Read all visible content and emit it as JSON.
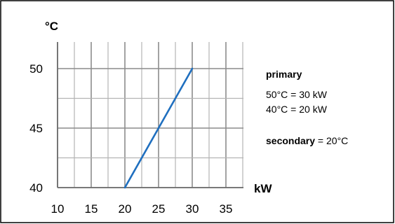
{
  "chart_data": {
    "type": "line",
    "title": "",
    "xlabel": "kW",
    "ylabel": "°C",
    "xlim": [
      10,
      35
    ],
    "ylim": [
      40,
      50
    ],
    "x_ticks": [
      10,
      15,
      20,
      25,
      30,
      35
    ],
    "y_ticks": [
      40,
      45,
      50
    ],
    "x_ticks_label": [
      "10",
      "15",
      "20",
      "25",
      "30",
      "35"
    ],
    "y_ticks_label": [
      "40",
      "45",
      "50"
    ],
    "grid": true,
    "series": [
      {
        "x": [
          20,
          30
        ],
        "y": [
          40,
          50
        ],
        "color": "#1f6fbf"
      }
    ],
    "annotations": {
      "primary_label": "primary",
      "primary_line1": "50°C = 30 kW",
      "primary_line2": "40°C = 20 kW",
      "secondary_label": "secondary",
      "secondary_value": " = 20°C"
    }
  }
}
